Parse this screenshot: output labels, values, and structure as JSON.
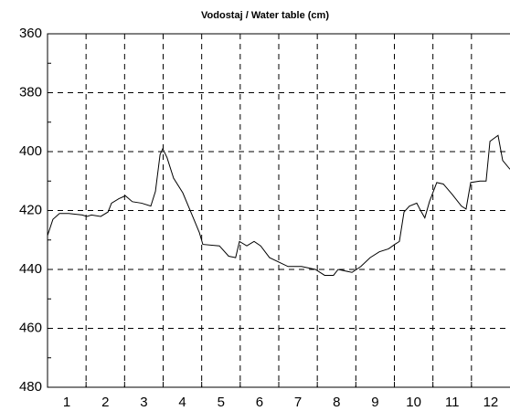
{
  "chart_data": {
    "type": "line",
    "title": "Vodostaj / Water table (cm)",
    "categories": [
      "1",
      "2",
      "3",
      "4",
      "5",
      "6",
      "7",
      "8",
      "9",
      "10",
      "11",
      "12"
    ],
    "xlim": [
      0,
      12
    ],
    "ylim": [
      360,
      480
    ],
    "y_inverted": true,
    "yticks": [
      360,
      380,
      400,
      420,
      440,
      460,
      480
    ],
    "yminor_ticks": [
      370,
      390,
      410,
      430,
      450,
      470
    ],
    "grid": true,
    "series": [
      {
        "color": "#000000",
        "x": [
          0,
          0.14,
          0.31,
          0.55,
          0.9,
          1.02,
          1.14,
          1.38,
          1.57,
          1.66,
          1.85,
          2.02,
          2.2,
          2.44,
          2.68,
          2.8,
          2.92,
          2.99,
          3.1,
          3.27,
          3.51,
          3.75,
          3.94,
          4.03,
          4.46,
          4.7,
          4.88,
          4.98,
          5.17,
          5.36,
          5.53,
          5.76,
          6.0,
          6.24,
          6.59,
          6.95,
          7.19,
          7.42,
          7.54,
          7.9,
          8.13,
          8.37,
          8.61,
          8.85,
          9.01,
          9.13,
          9.25,
          9.39,
          9.58,
          9.68,
          9.79,
          9.91,
          10.1,
          10.27,
          10.5,
          10.74,
          10.86,
          10.98,
          11.22,
          11.38,
          11.48,
          11.69,
          11.81,
          12.0
        ],
        "values": [
          428.5,
          423,
          421,
          421,
          421.5,
          422,
          421.5,
          422,
          420.5,
          417.5,
          416,
          415,
          417,
          417.5,
          418.5,
          413.5,
          401,
          399,
          402,
          409,
          414,
          421.5,
          427.5,
          431.5,
          432,
          435.5,
          436,
          430.5,
          432,
          430.5,
          432,
          436,
          437.5,
          439,
          439,
          440,
          442,
          442,
          440,
          441,
          439,
          436,
          434,
          433,
          431.5,
          430.5,
          420.5,
          418.5,
          417.5,
          420,
          422.5,
          417,
          410.5,
          411,
          414.5,
          418.5,
          419.5,
          410.5,
          410,
          410,
          396.5,
          394.5,
          403,
          406
        ]
      }
    ]
  }
}
